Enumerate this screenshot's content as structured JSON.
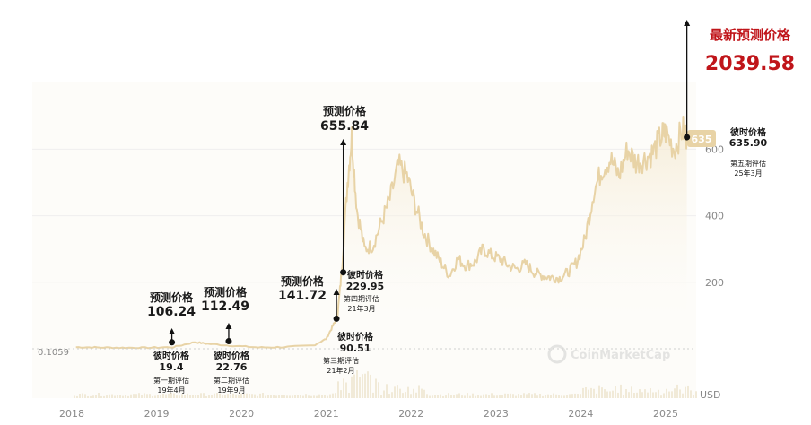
{
  "chart_data": {
    "type": "area",
    "unit_label": "USD",
    "watermark": "CoinMarketCap",
    "baseline_label": "0.1059",
    "price_badge": "635",
    "colors": {
      "line": "#e8d3a6",
      "fill_top": "#f3e7cc",
      "fill_bottom": "#ffffff",
      "badge": "#e8d3a6",
      "accent_red": "#c0151a",
      "annotation": "#111111"
    },
    "x_ticks": [
      {
        "label": "2018",
        "t": 2018.0
      },
      {
        "label": "2019",
        "t": 2019.0
      },
      {
        "label": "2020",
        "t": 2020.0
      },
      {
        "label": "2021",
        "t": 2021.0
      },
      {
        "label": "2022",
        "t": 2022.0
      },
      {
        "label": "2023",
        "t": 2023.0
      },
      {
        "label": "2024",
        "t": 2024.0
      },
      {
        "label": "2025",
        "t": 2025.0
      }
    ],
    "y_ticks": [
      {
        "label": "200",
        "v": 200
      },
      {
        "label": "400",
        "v": 400
      },
      {
        "label": "600",
        "v": 600
      }
    ],
    "series": [
      {
        "values": [
          [
            2018.05,
            5
          ],
          [
            2018.3,
            4
          ],
          [
            2018.6,
            3
          ],
          [
            2018.9,
            3
          ],
          [
            2019.2,
            5
          ],
          [
            2019.45,
            20
          ],
          [
            2019.6,
            15
          ],
          [
            2019.9,
            9
          ],
          [
            2020.2,
            4
          ],
          [
            2020.5,
            5
          ],
          [
            2020.85,
            10
          ],
          [
            2021.0,
            30
          ],
          [
            2021.08,
            70
          ],
          [
            2021.13,
            95
          ],
          [
            2021.18,
            230
          ],
          [
            2021.25,
            500
          ],
          [
            2021.3,
            640
          ],
          [
            2021.36,
            420
          ],
          [
            2021.45,
            300
          ],
          [
            2021.55,
            310
          ],
          [
            2021.65,
            380
          ],
          [
            2021.75,
            450
          ],
          [
            2021.85,
            550
          ],
          [
            2021.95,
            520
          ],
          [
            2022.05,
            430
          ],
          [
            2022.15,
            350
          ],
          [
            2022.25,
            300
          ],
          [
            2022.35,
            260
          ],
          [
            2022.45,
            220
          ],
          [
            2022.55,
            270
          ],
          [
            2022.65,
            250
          ],
          [
            2022.75,
            260
          ],
          [
            2022.85,
            300
          ],
          [
            2022.95,
            280
          ],
          [
            2023.05,
            270
          ],
          [
            2023.15,
            250
          ],
          [
            2023.25,
            240
          ],
          [
            2023.35,
            255
          ],
          [
            2023.45,
            230
          ],
          [
            2023.55,
            220
          ],
          [
            2023.65,
            215
          ],
          [
            2023.75,
            213
          ],
          [
            2023.85,
            230
          ],
          [
            2023.95,
            260
          ],
          [
            2024.05,
            330
          ],
          [
            2024.15,
            470
          ],
          [
            2024.25,
            540
          ],
          [
            2024.35,
            570
          ],
          [
            2024.45,
            520
          ],
          [
            2024.55,
            600
          ],
          [
            2024.65,
            560
          ],
          [
            2024.75,
            570
          ],
          [
            2024.85,
            590
          ],
          [
            2024.95,
            640
          ],
          [
            2025.0,
            650
          ],
          [
            2025.1,
            600
          ],
          [
            2025.2,
            660
          ],
          [
            2025.25,
            635
          ]
        ]
      }
    ],
    "annotations": [
      {
        "t": 2019.18,
        "v": 19.4,
        "dir": "up",
        "predict_label": "预测价格",
        "predict_value": "106.24",
        "then_label": "彼时价格",
        "then_value": "19.4",
        "period": "第一期评估",
        "date": "19年4月"
      },
      {
        "t": 2019.85,
        "v": 22.76,
        "dir": "up",
        "predict_label": "预测价格",
        "predict_value": "112.49",
        "then_label": "彼时价格",
        "then_value": "22.76",
        "period": "第二期评估",
        "date": "19年9月"
      },
      {
        "t": 2021.12,
        "v": 90.51,
        "dir": "up",
        "predict_label": "预测价格",
        "predict_value": "141.72",
        "then_label": "彼时价格",
        "then_value": "90.51",
        "period": "第三期评估",
        "date": "21年2月"
      },
      {
        "t": 2021.2,
        "v": 229.95,
        "dir": "up",
        "predict_label": "预测价格",
        "predict_value": "655.84",
        "then_label": "彼时价格",
        "then_value": "229.95",
        "period": "第四期评估",
        "date": "21年3月"
      },
      {
        "t": 2025.25,
        "v": 635.9,
        "dir": "up",
        "predict_label": "最新预测价格",
        "predict_value": "2039.58",
        "then_label": "彼时价格",
        "then_value": "635.90",
        "period": "第五期评估",
        "date": "25年3月"
      }
    ]
  }
}
